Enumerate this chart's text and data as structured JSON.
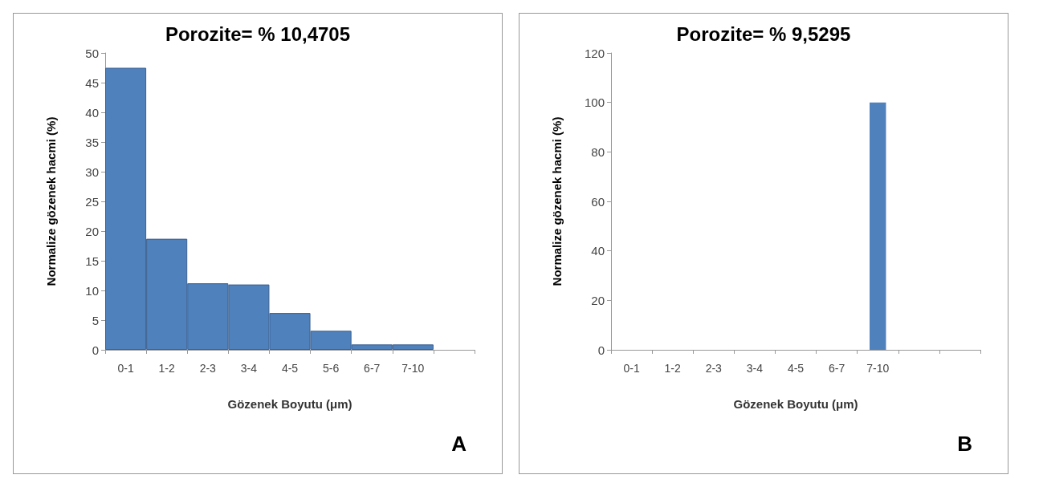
{
  "chart_data": [
    {
      "type": "bar",
      "title": "Porozite= % 10,4705",
      "xlabel": "Gözenek Boyutu (μm)",
      "ylabel": "Normalize gözenek hacmi (%)",
      "categories": [
        "0-1",
        "1-2",
        "2-3",
        "3-4",
        "4-5",
        "5-6",
        "6-7",
        "7-10",
        null
      ],
      "values": [
        47.5,
        18.7,
        11.2,
        11,
        6.2,
        3.2,
        0.9,
        0.9,
        null
      ],
      "color": "#4f81bd",
      "ylim": [
        0,
        50
      ],
      "yticks": [
        0,
        5,
        10,
        15,
        20,
        25,
        30,
        35,
        40,
        45,
        50
      ],
      "grid": false,
      "annotations": [
        "A"
      ]
    },
    {
      "type": "bar",
      "title": "Porozite= % 9,5295",
      "xlabel": "Gözenek Boyutu (μm)",
      "ylabel": "Normalize gözenek hacmi (%)",
      "categories": [
        "0-1",
        "1-2",
        "2-3",
        "3-4",
        "4-5",
        "6-7",
        "7-10",
        null,
        null
      ],
      "values": [
        0,
        0,
        0,
        0,
        0,
        0,
        100,
        0,
        0
      ],
      "color": "#4f81bd",
      "ylim": [
        0,
        120
      ],
      "yticks": [
        0,
        20,
        40,
        60,
        80,
        100,
        120
      ],
      "grid": false,
      "annotations": [
        "B"
      ]
    }
  ]
}
